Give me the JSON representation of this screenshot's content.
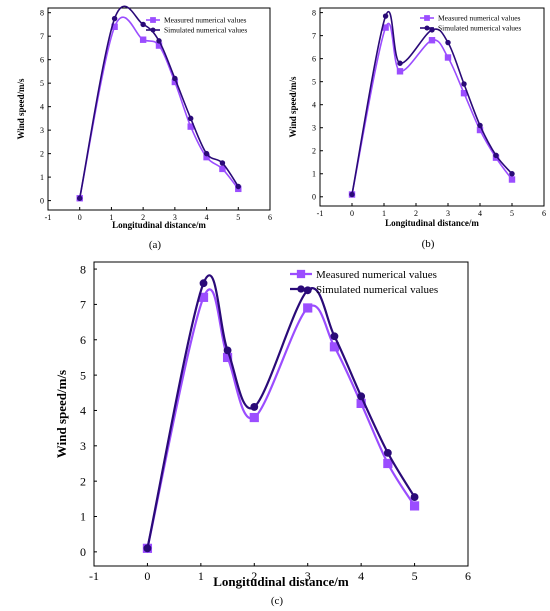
{
  "colors": {
    "measured": "#9b4dff",
    "simulated": "#2a0a78"
  },
  "chart_data": [
    {
      "type": "line",
      "panel_label": "(a)",
      "xlabel": "Longitudinal distance/m",
      "ylabel": "Wind speed/m/s",
      "xlim": [
        -1,
        6
      ],
      "ylim": [
        0,
        8
      ],
      "x_ticks": [
        -1,
        0,
        1,
        2,
        3,
        4,
        5,
        6
      ],
      "y_ticks": [
        0,
        1,
        2,
        3,
        4,
        5,
        6,
        7,
        8
      ],
      "legend_position": "top-right",
      "series": [
        {
          "name": "Measured numerical values",
          "marker": "square",
          "x": [
            0,
            1.1,
            2,
            2.5,
            3,
            3.5,
            4,
            4.5,
            5
          ],
          "y": [
            0.1,
            7.4,
            6.85,
            6.6,
            5.05,
            3.15,
            1.85,
            1.35,
            0.5
          ]
        },
        {
          "name": "Simulated numerical values",
          "marker": "circle",
          "x": [
            0,
            1.1,
            2,
            2.5,
            3,
            3.5,
            4,
            4.5,
            5
          ],
          "y": [
            0.1,
            7.75,
            7.5,
            6.8,
            5.2,
            3.5,
            2.0,
            1.6,
            0.6
          ]
        }
      ]
    },
    {
      "type": "line",
      "panel_label": "(b)",
      "xlabel": "Longitudinal distance/m",
      "ylabel": "Wind speed/m/s",
      "xlim": [
        -1,
        6
      ],
      "ylim": [
        0,
        8
      ],
      "x_ticks": [
        -1,
        0,
        1,
        2,
        3,
        4,
        5,
        6
      ],
      "y_ticks": [
        0,
        1,
        2,
        3,
        4,
        5,
        6,
        7,
        8
      ],
      "legend_position": "top-right",
      "series": [
        {
          "name": "Measured numerical values",
          "marker": "square",
          "x": [
            0,
            1.05,
            1.5,
            2.5,
            3,
            3.5,
            4,
            4.5,
            5
          ],
          "y": [
            0.1,
            7.35,
            5.45,
            6.8,
            6.05,
            4.5,
            2.9,
            1.7,
            0.75
          ]
        },
        {
          "name": "Simulated numerical values",
          "marker": "circle",
          "x": [
            0,
            1.05,
            1.5,
            2.5,
            3,
            3.5,
            4,
            4.5,
            5
          ],
          "y": [
            0.1,
            7.85,
            5.8,
            7.25,
            6.7,
            4.9,
            3.1,
            1.8,
            1.0
          ]
        }
      ]
    },
    {
      "type": "line",
      "panel_label": "(c)",
      "xlabel": "Longitudinal distance/m",
      "ylabel": "Wind speed/m/s",
      "xlim": [
        -1,
        6
      ],
      "ylim": [
        0,
        8
      ],
      "x_ticks": [
        -1,
        0,
        1,
        2,
        3,
        4,
        5,
        6
      ],
      "y_ticks": [
        0,
        1,
        2,
        3,
        4,
        5,
        6,
        7,
        8
      ],
      "legend_position": "top-right",
      "series": [
        {
          "name": "Measured numerical values",
          "marker": "square",
          "x": [
            0,
            1.05,
            1.5,
            2,
            3,
            3.5,
            4,
            4.5,
            5
          ],
          "y": [
            0.1,
            7.2,
            5.5,
            3.8,
            6.9,
            5.8,
            4.2,
            2.5,
            1.3
          ]
        },
        {
          "name": "Simulated numerical values",
          "marker": "circle",
          "x": [
            0,
            1.05,
            1.5,
            2,
            3,
            3.5,
            4,
            4.5,
            5
          ],
          "y": [
            0.1,
            7.6,
            5.7,
            4.1,
            7.4,
            6.1,
            4.4,
            2.8,
            1.55
          ]
        }
      ]
    }
  ]
}
